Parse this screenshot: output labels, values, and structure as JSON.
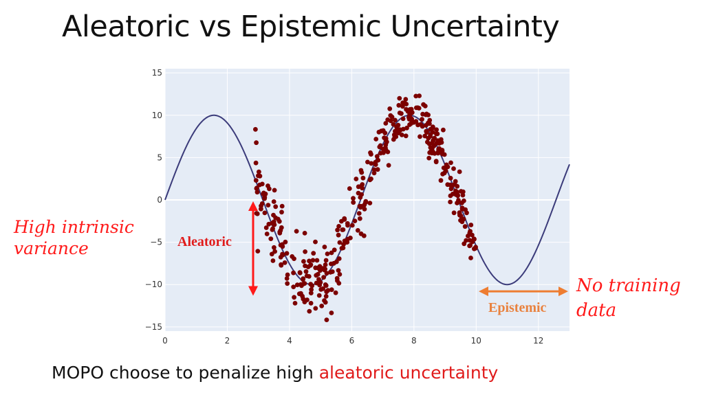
{
  "slide": {
    "title": "Aleatoric vs Epistemic Uncertainty",
    "note_left": [
      "High intrinsic",
      "variance"
    ],
    "note_right": [
      "No training",
      "data"
    ],
    "bottom_text": "MOPO choose to penalize high ",
    "bottom_highlight": "aleatoric uncertainty"
  },
  "colors": {
    "plot_background": "#e5ecf6",
    "curve": "#3b3b7a",
    "points": "#7b0000",
    "aleatoric_arrow": "#ff1a1a",
    "epistemic_arrow": "#ee7d31",
    "highlight_text": "#e01b1b"
  },
  "chart_data": {
    "type": "scatter",
    "xlim": [
      0,
      13
    ],
    "ylim": [
      -15.5,
      15.5
    ],
    "x_ticks": [
      0,
      2,
      4,
      6,
      8,
      10,
      12
    ],
    "y_ticks": [
      15,
      10,
      5,
      0,
      -5,
      -10,
      -15
    ],
    "x_tick_labels": [
      "0",
      "2",
      "4",
      "6",
      "8",
      "10",
      "12"
    ],
    "y_tick_labels": [
      "15",
      "10",
      "5",
      "0",
      "−5",
      "−10",
      "−15"
    ],
    "grid": true,
    "curve": {
      "function": "10*sin(x)",
      "x_range": [
        0,
        13
      ]
    },
    "scatter": {
      "x_range": [
        2.9,
        10
      ],
      "mean_function": "10*sin(x)",
      "noise_std_left": 2.2,
      "noise_std_right": 1.3,
      "count": 420
    },
    "annotations": [
      {
        "label": "Aleatoric",
        "arrow": "vertical",
        "x": 2.85,
        "y_from": 0,
        "y_to": -11
      },
      {
        "label": "Epistemic",
        "arrow": "horizontal",
        "y": -10.8,
        "x_from": 10.1,
        "x_to": 13
      }
    ]
  }
}
